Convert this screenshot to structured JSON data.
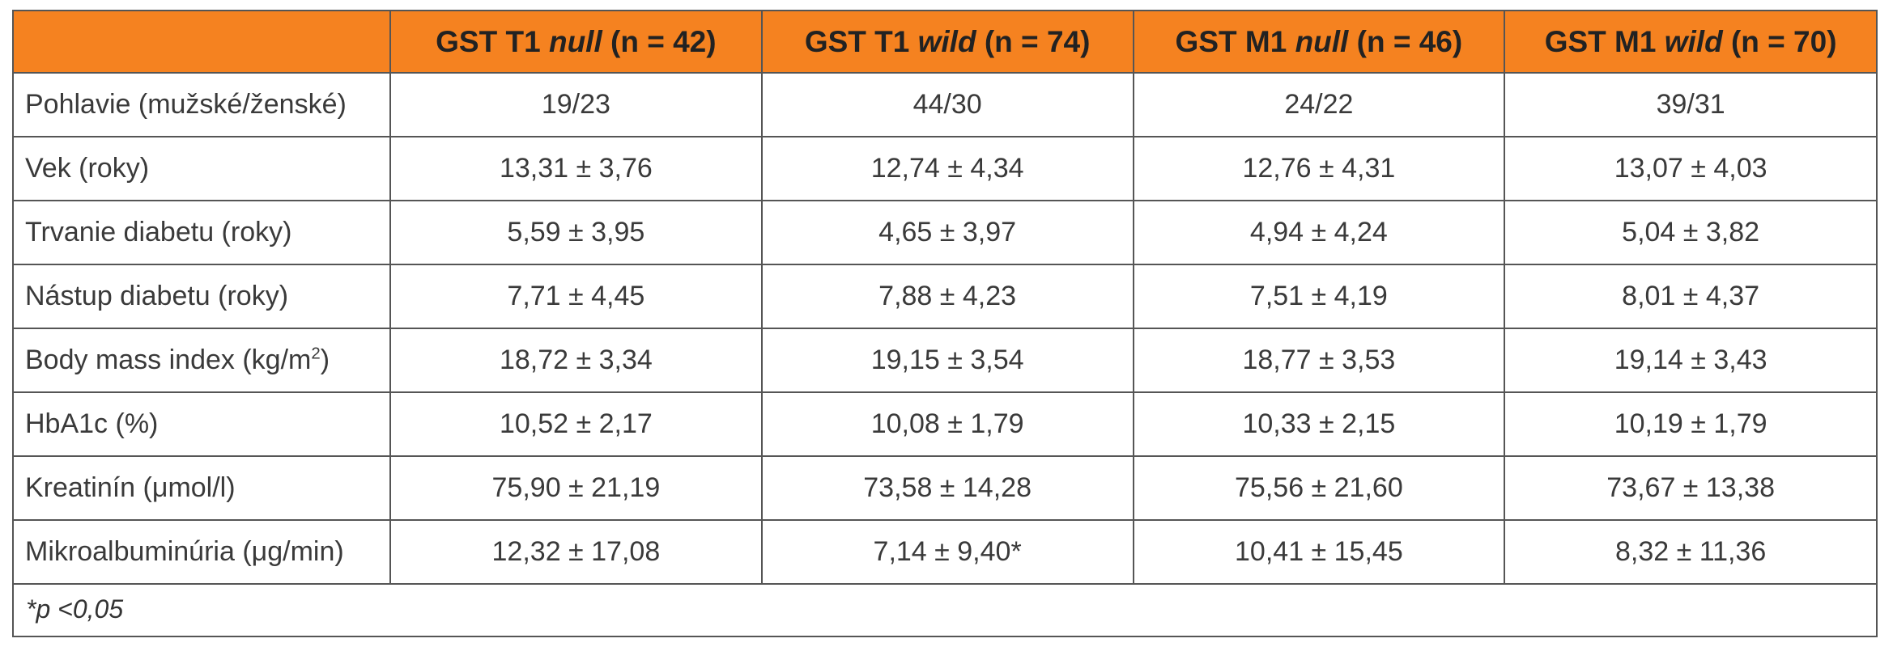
{
  "header": {
    "col0": "",
    "cols": [
      {
        "prefix": "GST T1 ",
        "emph": "null",
        "suffix": " (n = 42)"
      },
      {
        "prefix": "GST T1 ",
        "emph": "wild",
        "suffix": " (n = 74)"
      },
      {
        "prefix": "GST M1 ",
        "emph": "null",
        "suffix": " (n = 46)"
      },
      {
        "prefix": "GST M1 ",
        "emph": "wild",
        "suffix": " (n = 70)"
      }
    ]
  },
  "rows": [
    {
      "label": "Pohlavie (mužské/ženské)",
      "values": [
        "19/23",
        "44/30",
        "24/22",
        "39/31"
      ]
    },
    {
      "label": "Vek (roky)",
      "values": [
        "13,31 ± 3,76",
        "12,74 ± 4,34",
        "12,76 ± 4,31",
        "13,07 ± 4,03"
      ]
    },
    {
      "label": "Trvanie diabetu (roky)",
      "values": [
        "5,59 ± 3,95",
        "4,65 ± 3,97",
        "4,94 ± 4,24",
        "5,04 ± 3,82"
      ]
    },
    {
      "label": "Nástup diabetu (roky)",
      "values": [
        "7,71 ± 4,45",
        "7,88 ± 4,23",
        "7,51 ± 4,19",
        "8,01 ± 4,37"
      ]
    },
    {
      "label": "Body mass index (kg/m",
      "label_sup": "2",
      "label_tail": ")",
      "values": [
        "18,72 ± 3,34",
        "19,15 ± 3,54",
        "18,77 ± 3,53",
        "19,14 ± 3,43"
      ]
    },
    {
      "label": "HbA1c (%)",
      "values": [
        "10,52 ± 2,17",
        "10,08 ± 1,79",
        "10,33 ± 2,15",
        "10,19 ± 1,79"
      ]
    },
    {
      "label": "Kreatinín (μmol/l)",
      "values": [
        "75,90 ± 21,19",
        "73,58 ± 14,28",
        "75,56 ± 21,60",
        "73,67 ± 13,38"
      ]
    },
    {
      "label": "Mikroalbuminúria (μg/min)",
      "values": [
        "12,32 ± 17,08",
        "7,14 ± 9,40*",
        "10,41 ± 15,45",
        "8,32 ± 11,36"
      ]
    }
  ],
  "footnote": "*p <0,05",
  "colors": {
    "header_bg": "#f58220",
    "border": "#555555"
  }
}
